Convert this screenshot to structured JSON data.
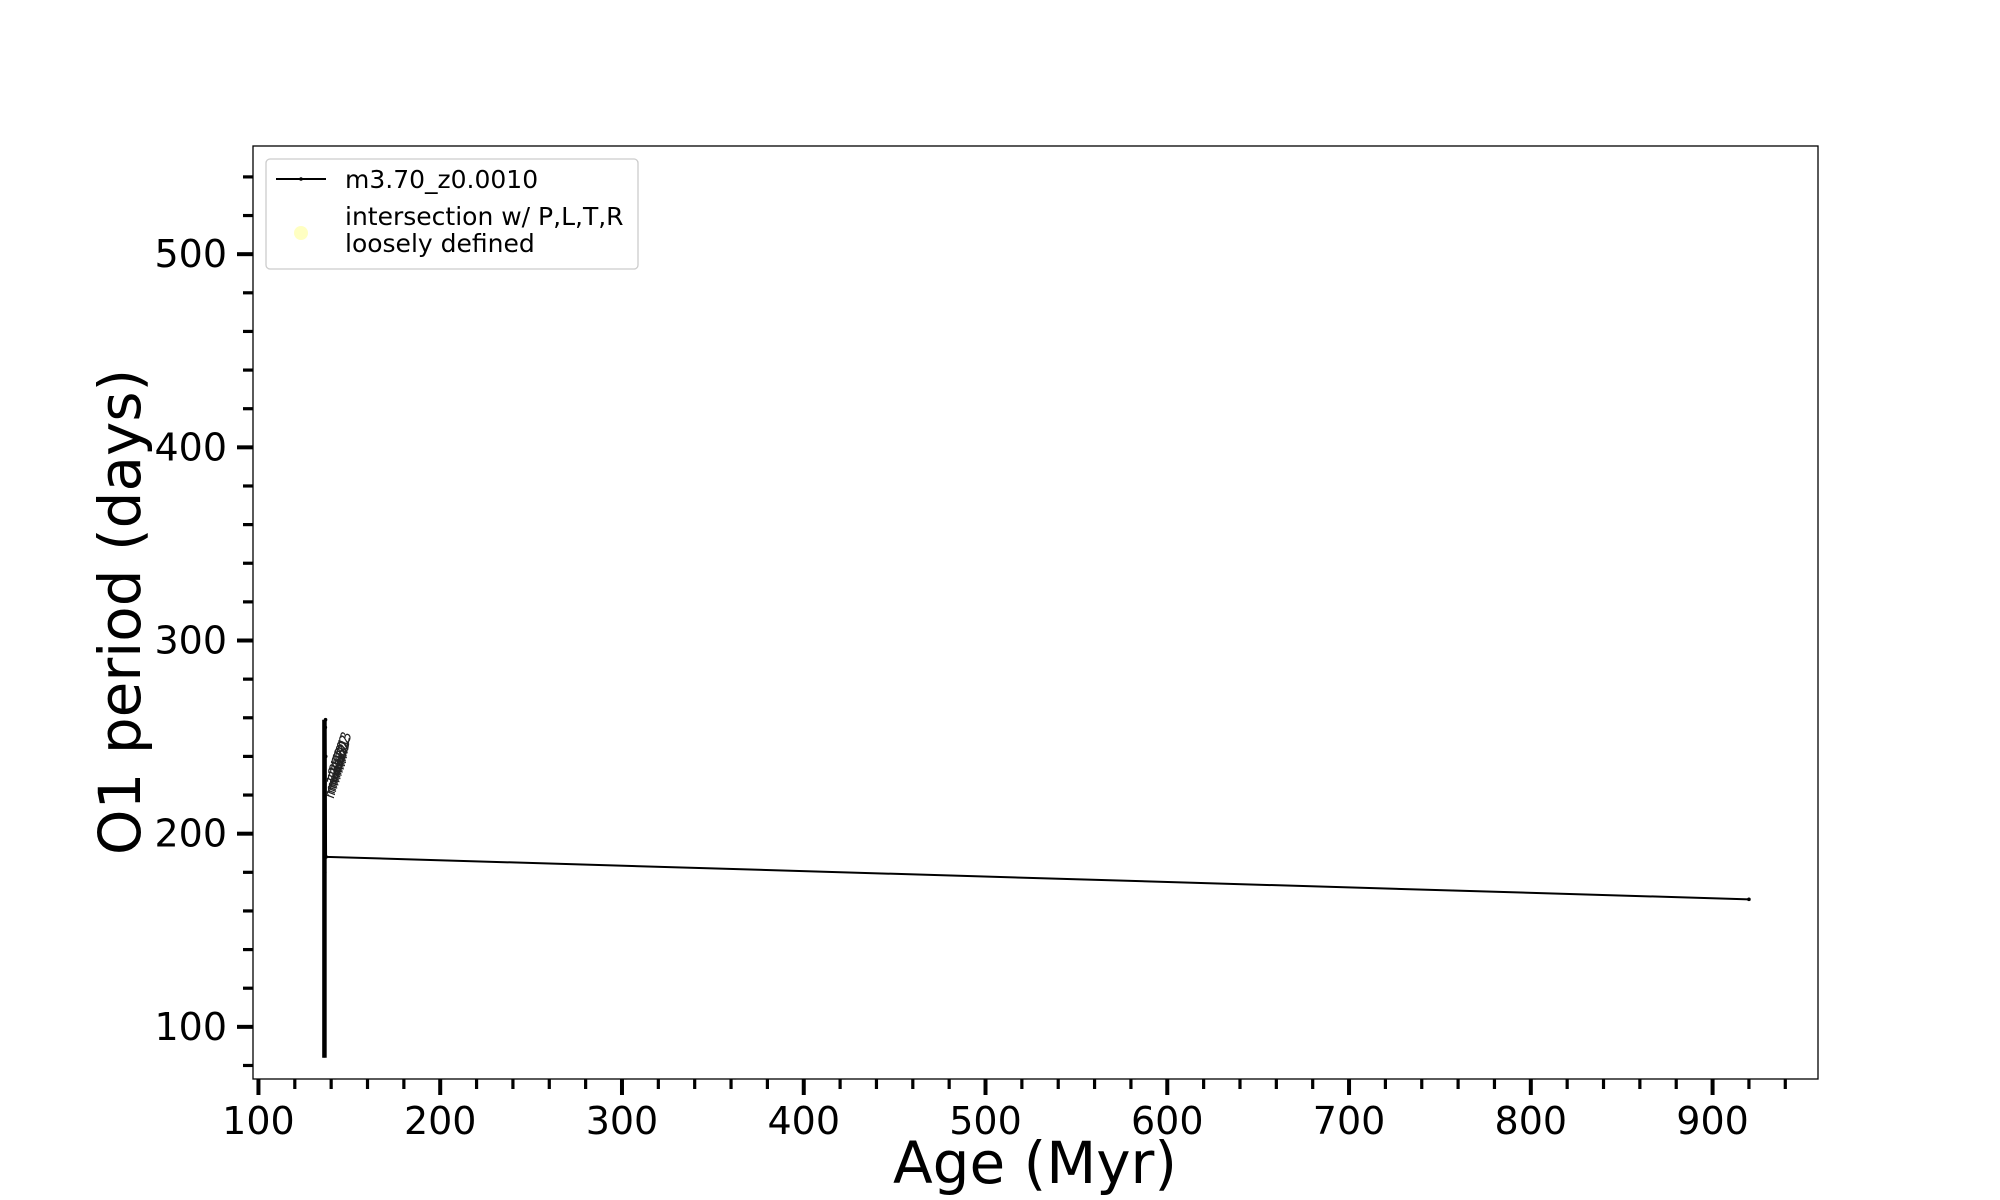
{
  "chart_data": {
    "type": "line",
    "title": "",
    "xlabel": "Age (Myr)",
    "ylabel": "O1 period (days)",
    "xlim": [
      97,
      958
    ],
    "ylim": [
      73,
      556
    ],
    "xticks": [
      100,
      200,
      300,
      400,
      500,
      600,
      700,
      800,
      900
    ],
    "yticks": [
      100,
      200,
      300,
      400,
      500
    ],
    "x_minor_step": 20,
    "y_minor_step": 20,
    "grid": false,
    "legend_position": "upper-left",
    "series": [
      {
        "name": "m3.70_z0.0010",
        "color": "#000000",
        "marker": "small-dot",
        "x": [
          136.2,
          136.3,
          136.3,
          136.4,
          136.4,
          136.5,
          136.6,
          136.6,
          136.7,
          136.8,
          136.9,
          137.0,
          137.2,
          920.0
        ],
        "y": [
          85,
          100,
          120,
          140,
          160,
          180,
          200,
          220,
          240,
          255,
          259,
          240,
          188,
          166
        ]
      }
    ],
    "legend_entries": [
      {
        "label": "m3.70_z0.0010",
        "kind": "line"
      },
      {
        "label_lines": [
          "intersection w/ P,L,T,R",
          "loosely defined"
        ],
        "kind": "marker",
        "color": "#ffff99"
      }
    ],
    "point_labels": [
      "m12",
      "m13",
      "m14",
      "m15",
      "m16",
      "m17",
      "m18",
      "m19",
      "m20",
      "m21",
      "m22",
      "m23"
    ],
    "point_label_anchor": {
      "x": 137.0,
      "y": 218
    }
  }
}
